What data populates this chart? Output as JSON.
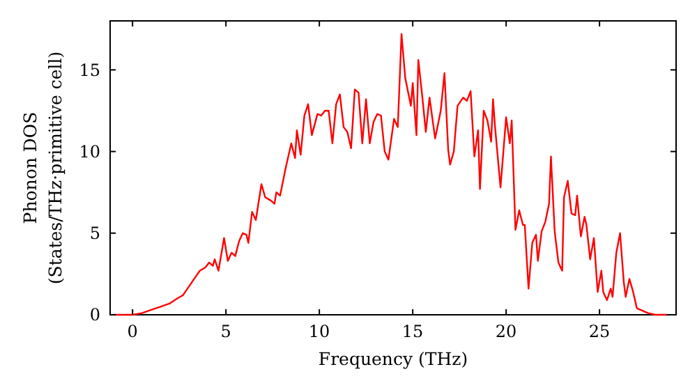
{
  "chart_data": {
    "type": "line",
    "xlabel": "Frequency (THz)",
    "ylabel": "Phonon DOS\n(States/THz·primitive cell)",
    "xlim": [
      -1.2,
      29.1
    ],
    "ylim": [
      0,
      18
    ],
    "xticks": [
      0,
      5,
      10,
      15,
      20,
      25
    ],
    "yticks": [
      0,
      5,
      10,
      15
    ],
    "grid": false,
    "marker": "none",
    "line_style": "solid",
    "series": [
      {
        "color": "#ff0000",
        "x": [
          -1,
          0,
          0.5,
          1,
          1.5,
          2,
          2.4,
          2.7,
          3,
          3.3,
          3.6,
          3.9,
          4.1,
          4.3,
          4.4,
          4.6,
          4.9,
          5.1,
          5.3,
          5.5,
          5.7,
          5.9,
          6.1,
          6.2,
          6.4,
          6.6,
          6.9,
          7.1,
          7.4,
          7.6,
          7.7,
          7.9,
          8.2,
          8.5,
          8.7,
          8.8,
          9.0,
          9.2,
          9.4,
          9.6,
          9.9,
          10.1,
          10.3,
          10.5,
          10.7,
          10.9,
          11.1,
          11.3,
          11.5,
          11.7,
          11.9,
          12.1,
          12.3,
          12.5,
          12.7,
          12.9,
          13.1,
          13.3,
          13.5,
          13.7,
          14.0,
          14.2,
          14.4,
          14.6,
          14.9,
          15.0,
          15.2,
          15.3,
          15.5,
          15.7,
          15.9,
          16.2,
          16.5,
          16.7,
          16.9,
          17.0,
          17.2,
          17.4,
          17.7,
          17.9,
          18.1,
          18.3,
          18.5,
          18.6,
          18.8,
          19.0,
          19.2,
          19.3,
          19.4,
          19.7,
          20.0,
          20.2,
          20.3,
          20.5,
          20.7,
          20.9,
          21.0,
          21.2,
          21.4,
          21.6,
          21.7,
          21.9,
          22.1,
          22.3,
          22.4,
          22.6,
          22.8,
          23.0,
          23.1,
          23.3,
          23.5,
          23.7,
          23.8,
          24.0,
          24.2,
          24.3,
          24.5,
          24.7,
          24.9,
          25.1,
          25.2,
          25.4,
          25.6,
          25.7,
          25.9,
          26.1,
          26.3,
          26.4,
          26.6,
          26.8,
          27.0,
          27.6,
          28.0,
          28.6
        ],
        "values": [
          0,
          0,
          0.1,
          0.3,
          0.5,
          0.7,
          1,
          1.2,
          1.7,
          2.2,
          2.7,
          2.9,
          3.2,
          3.0,
          3.4,
          2.7,
          4.7,
          3.3,
          3.8,
          3.6,
          4.5,
          5.0,
          4.9,
          4.4,
          6.3,
          5.8,
          8.0,
          7.2,
          7.0,
          6.8,
          7.5,
          7.3,
          9.0,
          10.5,
          9.6,
          11.3,
          9.8,
          12.2,
          12.9,
          11.0,
          12.3,
          12.2,
          12.5,
          12.5,
          10.5,
          12.9,
          13.5,
          11.5,
          11.2,
          10.2,
          13.8,
          13.6,
          10.5,
          13.2,
          10.5,
          11.8,
          12.3,
          12.2,
          10.0,
          9.5,
          12.0,
          11.5,
          17.2,
          14.5,
          12.8,
          14.2,
          11.0,
          15.6,
          13.5,
          11.2,
          13.3,
          10.8,
          12.5,
          14.8,
          10.1,
          9.2,
          10.0,
          12.8,
          13.3,
          13.1,
          13.7,
          9.7,
          11.3,
          7.7,
          12.5,
          11.9,
          10.6,
          13.2,
          11.6,
          7.8,
          12.1,
          10.5,
          11.9,
          5.2,
          6.4,
          5.5,
          5.5,
          1.6,
          4.4,
          4.9,
          3.3,
          5.1,
          5.7,
          6.8,
          9.7,
          5.1,
          3.2,
          2.7,
          7.2,
          8.2,
          6.2,
          6.1,
          7.3,
          4.8,
          6.0,
          5.5,
          3.4,
          4.7,
          1.4,
          2.7,
          1.4,
          0.9,
          1.6,
          1.1,
          3.8,
          5.0,
          2.0,
          1.1,
          2.2,
          1.4,
          0.4,
          0.1,
          0,
          0
        ]
      }
    ]
  }
}
